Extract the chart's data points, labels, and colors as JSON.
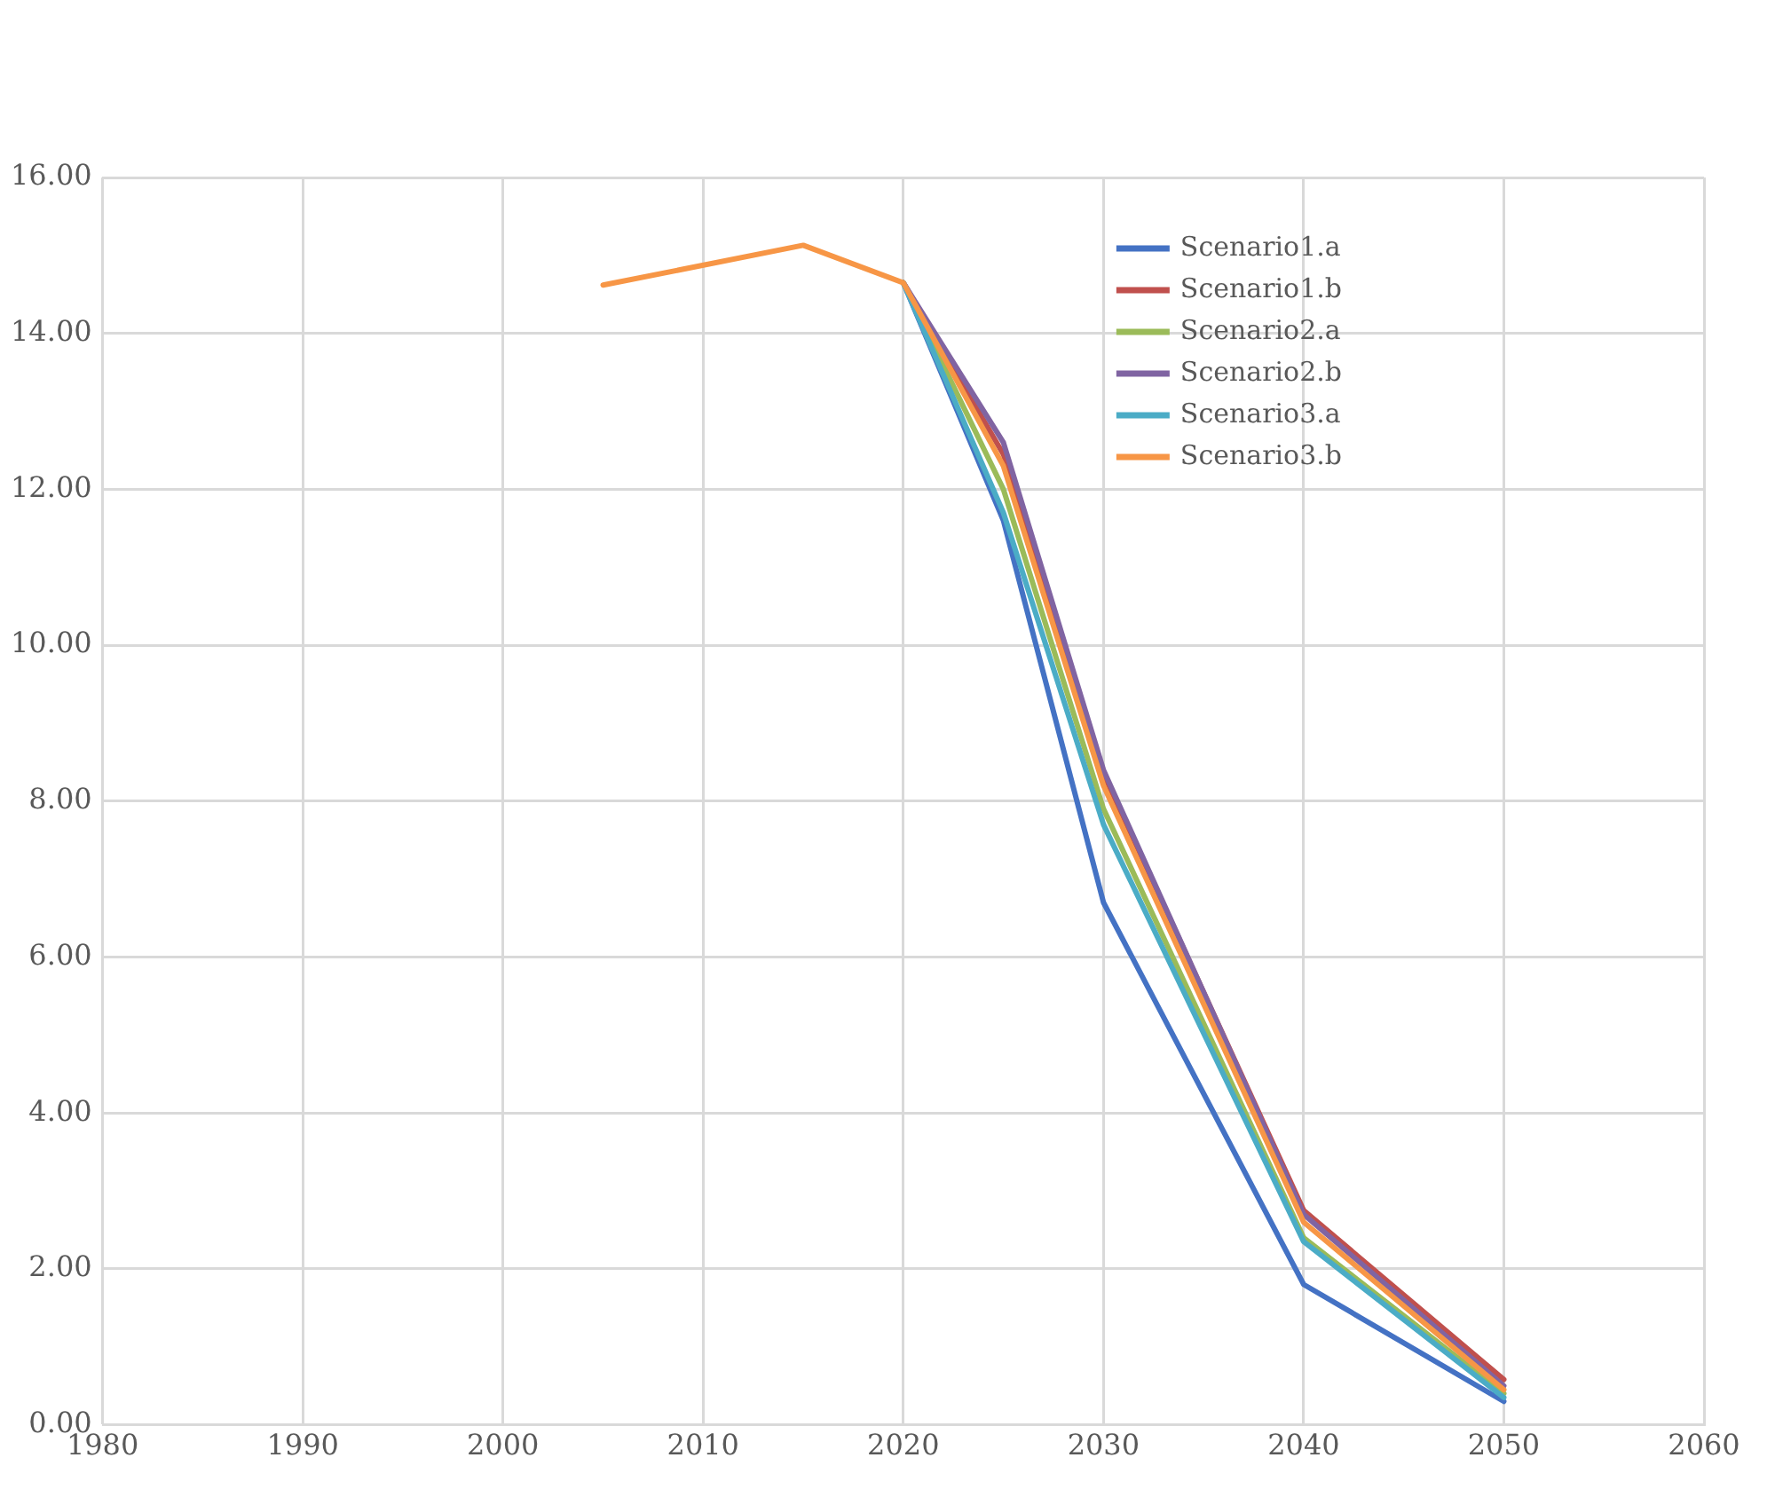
{
  "chart_data": {
    "type": "line",
    "x": [
      2005,
      2015,
      2020,
      2025,
      2030,
      2040,
      2050
    ],
    "series": [
      {
        "name": "Scenario1.a",
        "color": "#4472c4",
        "values": [
          null,
          null,
          14.65,
          11.6,
          6.7,
          1.8,
          0.3
        ]
      },
      {
        "name": "Scenario1.b",
        "color": "#c0504d",
        "values": [
          null,
          null,
          14.65,
          12.45,
          8.35,
          2.75,
          0.58
        ]
      },
      {
        "name": "Scenario2.a",
        "color": "#9bbb59",
        "values": [
          null,
          null,
          14.65,
          12.0,
          7.9,
          2.4,
          0.4
        ]
      },
      {
        "name": "Scenario2.b",
        "color": "#8064a2",
        "values": [
          null,
          null,
          14.65,
          12.6,
          8.4,
          2.7,
          0.5
        ]
      },
      {
        "name": "Scenario3.a",
        "color": "#4bacc6",
        "values": [
          null,
          null,
          14.65,
          11.7,
          7.7,
          2.35,
          0.35
        ]
      },
      {
        "name": "Scenario3.b",
        "color": "#f79646",
        "values": [
          14.62,
          15.13,
          14.65,
          12.3,
          8.2,
          2.6,
          0.45
        ]
      }
    ],
    "xlim": [
      1980,
      2060
    ],
    "xticks": [
      1980,
      1990,
      2000,
      2010,
      2020,
      2030,
      2040,
      2050,
      2060
    ],
    "ylim": [
      0,
      16
    ],
    "yticks": [
      {
        "value": 0,
        "label": "0.00"
      },
      {
        "value": 2,
        "label": "2.00"
      },
      {
        "value": 4,
        "label": "4.00"
      },
      {
        "value": 6,
        "label": "6.00"
      },
      {
        "value": 8,
        "label": "8.00"
      },
      {
        "value": 10,
        "label": "10.00"
      },
      {
        "value": 12,
        "label": "12.00"
      },
      {
        "value": 14,
        "label": "14.00"
      },
      {
        "value": 16,
        "label": "16.00"
      }
    ],
    "grid": true,
    "legend": "top right",
    "marker": "none",
    "line_style": "solid"
  }
}
